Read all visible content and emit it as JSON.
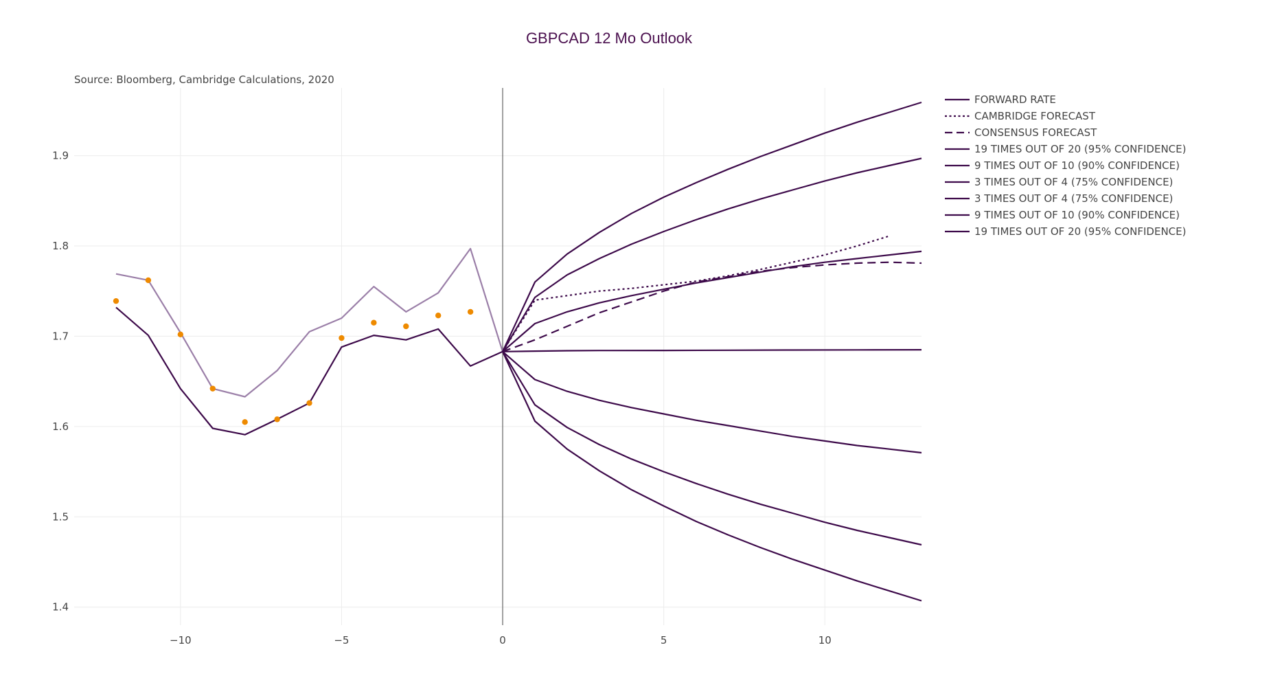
{
  "chart_data": {
    "type": "line",
    "title": "GBPCAD 12 Mo Outlook",
    "source_note": "Source: Bloomberg, Cambridge Calculations, 2020",
    "xlim": [
      -13.3,
      13.0
    ],
    "ylim": [
      1.38,
      1.975
    ],
    "x_ticks": [
      -10,
      -5,
      0,
      5,
      10
    ],
    "x_tick_labels": [
      "−10",
      "−5",
      "0",
      "5",
      "10"
    ],
    "y_ticks": [
      1.4,
      1.5,
      1.6,
      1.7,
      1.8,
      1.9
    ],
    "y_tick_labels": [
      "1.4",
      "1.5",
      "1.6",
      "1.7",
      "1.8",
      "1.9"
    ],
    "grid": true,
    "legend_position": "top-right",
    "zero_line_x": 0,
    "colors": {
      "dark_purple": "#3d0a4a",
      "light_purple": "#9b7fa8",
      "orange_marker": "#ee8a00",
      "title": "#4a0f4e",
      "grid": "#ececec"
    },
    "history_low": {
      "x": [
        -12,
        -11,
        -10,
        -9,
        -8,
        -7,
        -6,
        -5,
        -4,
        -3,
        -2,
        -1,
        0
      ],
      "y": [
        1.732,
        1.701,
        1.642,
        1.598,
        1.591,
        1.608,
        1.626,
        1.688,
        1.701,
        1.696,
        1.708,
        1.667,
        1.683
      ]
    },
    "history_high": {
      "x": [
        -12,
        -11,
        -10,
        -9,
        -8,
        -7,
        -6,
        -5,
        -4,
        -3,
        -2,
        -1,
        0
      ],
      "y": [
        1.769,
        1.762,
        1.704,
        1.642,
        1.633,
        1.662,
        1.705,
        1.72,
        1.755,
        1.727,
        1.748,
        1.797,
        1.683
      ]
    },
    "history_points": {
      "x": [
        -12,
        -11,
        -10,
        -9,
        -8,
        -7,
        -6,
        -5,
        -4,
        -3,
        -2,
        -1
      ],
      "y": [
        1.739,
        1.762,
        1.702,
        1.642,
        1.605,
        1.608,
        1.626,
        1.698,
        1.715,
        1.711,
        1.723,
        1.727
      ]
    },
    "series": [
      {
        "name": "FORWARD RATE",
        "style": "solid",
        "x": [
          0,
          1,
          2,
          3,
          5,
          7,
          9,
          11,
          13
        ],
        "y": [
          1.683,
          1.6835,
          1.684,
          1.6842,
          1.6843,
          1.6845,
          1.6847,
          1.6849,
          1.685
        ]
      },
      {
        "name": "CAMBRIDGE FORECAST",
        "style": "dot",
        "x": [
          0,
          1,
          2,
          3,
          4,
          5,
          6,
          7,
          8,
          9,
          10,
          11,
          12
        ],
        "y": [
          1.683,
          1.74,
          1.745,
          1.75,
          1.753,
          1.757,
          1.761,
          1.767,
          1.774,
          1.782,
          1.79,
          1.8,
          1.811
        ]
      },
      {
        "name": "CONSENSUS FORECAST",
        "style": "dash",
        "x": [
          0,
          1,
          2,
          3,
          4,
          5,
          6,
          7,
          8,
          9,
          10,
          11,
          12,
          13
        ],
        "y": [
          1.683,
          1.696,
          1.711,
          1.726,
          1.738,
          1.75,
          1.76,
          1.766,
          1.772,
          1.776,
          1.779,
          1.781,
          1.782,
          1.781
        ]
      },
      {
        "name": "19 TIMES OUT OF 20 (95% CONFIDENCE)",
        "style": "solid",
        "x": [
          0,
          1,
          2,
          3,
          4,
          5,
          6,
          7,
          8,
          9,
          10,
          11,
          12,
          13
        ],
        "y": [
          1.683,
          1.76,
          1.791,
          1.815,
          1.836,
          1.854,
          1.87,
          1.885,
          1.899,
          1.912,
          1.925,
          1.937,
          1.948,
          1.959
        ]
      },
      {
        "name": "9 TIMES OUT OF 10 (90% CONFIDENCE)",
        "style": "solid",
        "x": [
          0,
          1,
          2,
          3,
          4,
          5,
          6,
          7,
          8,
          9,
          10,
          11,
          12,
          13
        ],
        "y": [
          1.683,
          1.743,
          1.768,
          1.786,
          1.802,
          1.816,
          1.829,
          1.841,
          1.852,
          1.862,
          1.872,
          1.881,
          1.889,
          1.897
        ]
      },
      {
        "name": "3 TIMES OUT OF 4 (75% CONFIDENCE)",
        "style": "solid",
        "x": [
          0,
          1,
          2,
          3,
          4,
          5,
          6,
          7,
          8,
          9,
          10,
          11,
          12,
          13
        ],
        "y": [
          1.683,
          1.714,
          1.727,
          1.737,
          1.745,
          1.752,
          1.759,
          1.765,
          1.771,
          1.777,
          1.782,
          1.786,
          1.79,
          1.794
        ]
      },
      {
        "name": "3 TIMES OUT OF 4 (75% CONFIDENCE)",
        "style": "solid",
        "x": [
          0,
          1,
          2,
          3,
          4,
          5,
          6,
          7,
          8,
          9,
          10,
          11,
          12,
          13
        ],
        "y": [
          1.683,
          1.652,
          1.639,
          1.629,
          1.621,
          1.614,
          1.607,
          1.601,
          1.595,
          1.589,
          1.584,
          1.579,
          1.575,
          1.571
        ]
      },
      {
        "name": "9 TIMES OUT OF 10 (90% CONFIDENCE)",
        "style": "solid",
        "x": [
          0,
          1,
          2,
          3,
          4,
          5,
          6,
          7,
          8,
          9,
          10,
          11,
          12,
          13
        ],
        "y": [
          1.683,
          1.624,
          1.599,
          1.58,
          1.564,
          1.55,
          1.537,
          1.525,
          1.514,
          1.504,
          1.494,
          1.485,
          1.477,
          1.469
        ]
      },
      {
        "name": "19 TIMES OUT OF 20 (95% CONFIDENCE)",
        "style": "solid",
        "x": [
          0,
          1,
          2,
          3,
          4,
          5,
          6,
          7,
          8,
          9,
          10,
          11,
          12,
          13
        ],
        "y": [
          1.683,
          1.606,
          1.575,
          1.551,
          1.53,
          1.512,
          1.495,
          1.48,
          1.466,
          1.453,
          1.441,
          1.429,
          1.418,
          1.407
        ]
      }
    ]
  }
}
